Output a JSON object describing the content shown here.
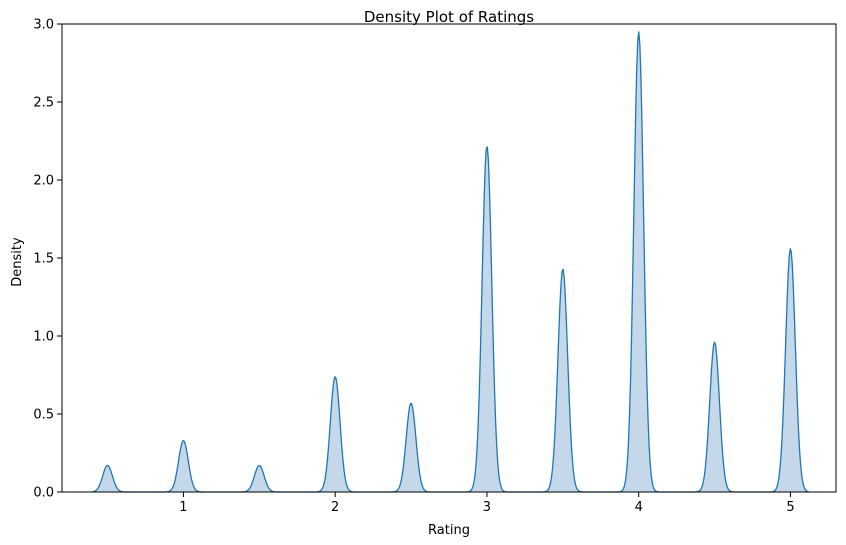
{
  "chart_data": {
    "type": "area",
    "title": "Density Plot of Ratings",
    "xlabel": "Rating",
    "ylabel": "Density",
    "xlim": [
      0.2,
      5.3
    ],
    "ylim": [
      0,
      3.0
    ],
    "x_ticks": [
      1,
      2,
      3,
      4,
      5
    ],
    "x_tick_labels": [
      "1",
      "2",
      "3",
      "4",
      "5"
    ],
    "y_ticks": [
      0.0,
      0.5,
      1.0,
      1.5,
      2.0,
      2.5,
      3.0
    ],
    "y_tick_labels": [
      "0.0",
      "0.5",
      "1.0",
      "1.5",
      "2.0",
      "2.5",
      "3.0"
    ],
    "grid": false,
    "colors": {
      "line": "#1f77b4",
      "fill": "#c5d8ea"
    },
    "series": [
      {
        "x_range": [
          0.4,
          5.12
        ],
        "peaks": [
          {
            "x": 0.5,
            "y": 0.17
          },
          {
            "x": 1.0,
            "y": 0.33
          },
          {
            "x": 1.5,
            "y": 0.17
          },
          {
            "x": 2.0,
            "y": 0.74
          },
          {
            "x": 2.5,
            "y": 0.57
          },
          {
            "x": 3.0,
            "y": 2.22
          },
          {
            "x": 3.5,
            "y": 1.43
          },
          {
            "x": 4.0,
            "y": 2.95
          },
          {
            "x": 4.5,
            "y": 0.96
          },
          {
            "x": 5.0,
            "y": 1.56
          }
        ]
      }
    ]
  }
}
